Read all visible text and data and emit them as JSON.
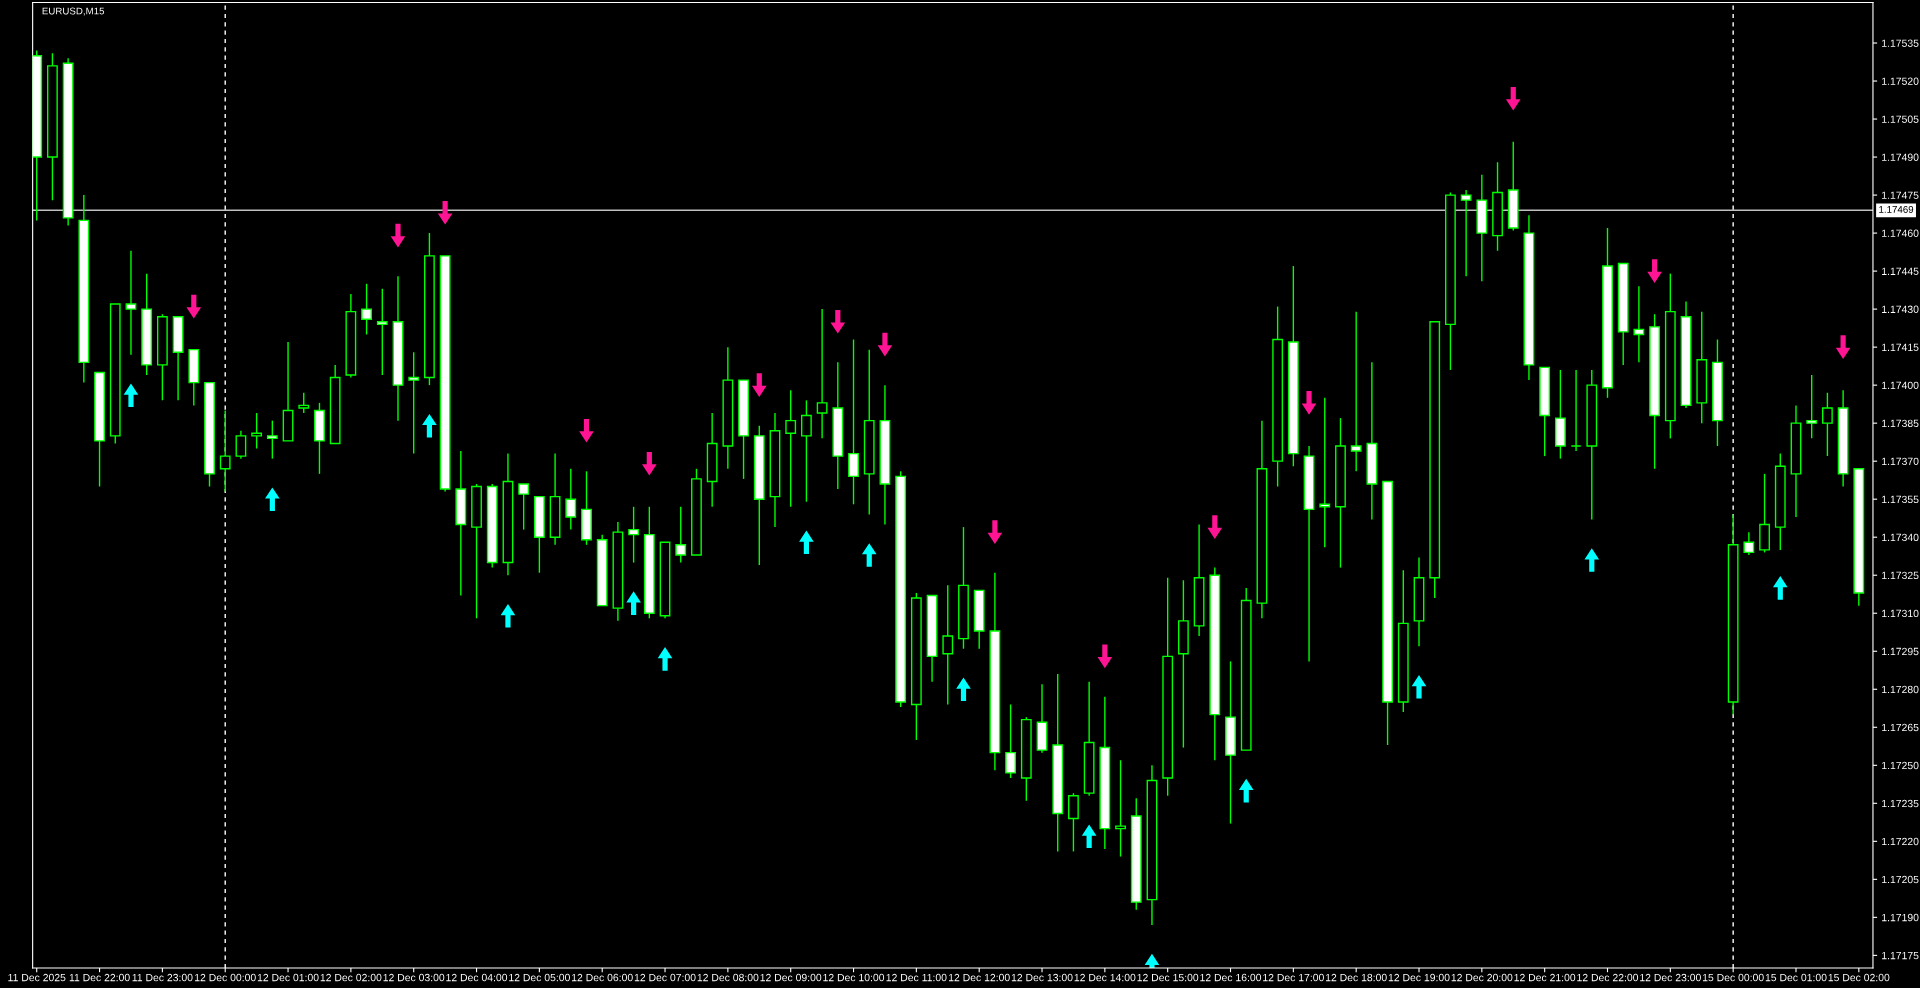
{
  "chart_data": {
    "type": "candlestick",
    "title": "EURUSD,M15",
    "categories": [
      "11 Dec 2025",
      null,
      null,
      null,
      "11 Dec 22:00",
      null,
      null,
      null,
      "11 Dec 23:00",
      null,
      null,
      null,
      "12 Dec 00:00",
      null,
      null,
      null,
      "12 Dec 01:00",
      null,
      null,
      null,
      "12 Dec 02:00",
      null,
      null,
      null,
      "12 Dec 03:00",
      null,
      null,
      null,
      "12 Dec 04:00",
      null,
      null,
      null,
      "12 Dec 05:00",
      null,
      null,
      null,
      "12 Dec 06:00",
      null,
      null,
      null,
      "12 Dec 07:00",
      null,
      null,
      null,
      "12 Dec 08:00",
      null,
      null,
      null,
      "12 Dec 09:00",
      null,
      null,
      null,
      "12 Dec 10:00",
      null,
      null,
      null,
      "12 Dec 11:00",
      null,
      null,
      null,
      "12 Dec 12:00",
      null,
      null,
      null,
      "12 Dec 13:00",
      null,
      null,
      null,
      "12 Dec 14:00",
      null,
      null,
      null,
      "12 Dec 15:00",
      null,
      null,
      null,
      "12 Dec 16:00",
      null,
      null,
      null,
      "12 Dec 17:00",
      null,
      null,
      null,
      "12 Dec 18:00",
      null,
      null,
      null,
      "12 Dec 19:00",
      null,
      null,
      null,
      "12 Dec 20:00",
      null,
      null,
      null,
      "12 Dec 21:00",
      null,
      null,
      null,
      "12 Dec 22:00",
      null,
      null,
      null,
      "12 Dec 23:00",
      null,
      null,
      null,
      "15 Dec 00:00",
      null,
      null,
      null,
      "15 Dec 01:00",
      null,
      null,
      null,
      "15 Dec 02:00"
    ],
    "ohlc": [
      [
        1.1753,
        1.17532,
        1.17465,
        1.1749
      ],
      [
        1.1749,
        1.17531,
        1.17473,
        1.17526
      ],
      [
        1.17527,
        1.17529,
        1.17463,
        1.17466
      ],
      [
        1.17465,
        1.17475,
        1.17401,
        1.17409
      ],
      [
        1.17405,
        1.17405,
        1.1736,
        1.17378
      ],
      [
        1.1738,
        1.17432,
        1.17377,
        1.17432
      ],
      [
        1.17432,
        1.17453,
        1.17412,
        1.1743
      ],
      [
        1.1743,
        1.17444,
        1.17404,
        1.17408
      ],
      [
        1.17408,
        1.17428,
        1.17394,
        1.17427
      ],
      [
        1.17427,
        1.17427,
        1.17394,
        1.17413
      ],
      [
        1.17414,
        1.17414,
        1.17392,
        1.17401
      ],
      [
        1.17401,
        1.17401,
        1.1736,
        1.17365
      ],
      [
        1.17367,
        1.1739,
        1.17358,
        1.17372
      ],
      [
        1.17372,
        1.17382,
        1.17371,
        1.1738
      ],
      [
        1.1738,
        1.17389,
        1.17375,
        1.17381
      ],
      [
        1.1738,
        1.17386,
        1.17371,
        1.17379
      ],
      [
        1.17378,
        1.17417,
        1.17378,
        1.1739
      ],
      [
        1.17391,
        1.17397,
        1.17389,
        1.17392
      ],
      [
        1.1739,
        1.17393,
        1.17365,
        1.17378
      ],
      [
        1.17377,
        1.17408,
        1.17377,
        1.17403
      ],
      [
        1.17404,
        1.17436,
        1.17403,
        1.17429
      ],
      [
        1.1743,
        1.1744,
        1.1742,
        1.17426
      ],
      [
        1.17425,
        1.17438,
        1.17404,
        1.17424
      ],
      [
        1.17425,
        1.17443,
        1.17386,
        1.174
      ],
      [
        1.17403,
        1.17413,
        1.17373,
        1.17402
      ],
      [
        1.17403,
        1.1746,
        1.174,
        1.17451
      ],
      [
        1.17451,
        1.17451,
        1.17358,
        1.17359
      ],
      [
        1.17359,
        1.17374,
        1.17317,
        1.17345
      ],
      [
        1.17344,
        1.17361,
        1.17308,
        1.1736
      ],
      [
        1.1736,
        1.17361,
        1.17328,
        1.1733
      ],
      [
        1.1733,
        1.17373,
        1.17325,
        1.17362
      ],
      [
        1.17361,
        1.17361,
        1.17343,
        1.17357
      ],
      [
        1.17356,
        1.17356,
        1.17326,
        1.1734
      ],
      [
        1.1734,
        1.17373,
        1.17337,
        1.17356
      ],
      [
        1.17355,
        1.17367,
        1.17343,
        1.17348
      ],
      [
        1.17351,
        1.17366,
        1.17337,
        1.17339
      ],
      [
        1.17339,
        1.17341,
        1.17313,
        1.17313
      ],
      [
        1.17312,
        1.17346,
        1.17307,
        1.17342
      ],
      [
        1.17343,
        1.17352,
        1.1733,
        1.17341
      ],
      [
        1.17341,
        1.17352,
        1.17308,
        1.1731
      ],
      [
        1.17309,
        1.17338,
        1.17308,
        1.17338
      ],
      [
        1.17337,
        1.17352,
        1.1733,
        1.17333
      ],
      [
        1.17333,
        1.17367,
        1.17333,
        1.17363
      ],
      [
        1.17362,
        1.17389,
        1.17352,
        1.17377
      ],
      [
        1.17376,
        1.17415,
        1.17367,
        1.17402
      ],
      [
        1.17402,
        1.17402,
        1.17363,
        1.1738
      ],
      [
        1.1738,
        1.17384,
        1.17329,
        1.17355
      ],
      [
        1.17356,
        1.17389,
        1.17344,
        1.17382
      ],
      [
        1.17381,
        1.17398,
        1.17352,
        1.17386
      ],
      [
        1.1738,
        1.17394,
        1.17354,
        1.17388
      ],
      [
        1.17389,
        1.1743,
        1.17379,
        1.17393
      ],
      [
        1.17391,
        1.17409,
        1.17359,
        1.17372
      ],
      [
        1.17373,
        1.17418,
        1.17353,
        1.17364
      ],
      [
        1.17365,
        1.17414,
        1.17349,
        1.17386
      ],
      [
        1.17386,
        1.174,
        1.17345,
        1.17361
      ],
      [
        1.17364,
        1.17366,
        1.17273,
        1.17275
      ],
      [
        1.17274,
        1.17318,
        1.1726,
        1.17316
      ],
      [
        1.17317,
        1.17317,
        1.17283,
        1.17293
      ],
      [
        1.17294,
        1.17321,
        1.17274,
        1.17301
      ],
      [
        1.173,
        1.17344,
        1.17296,
        1.17321
      ],
      [
        1.17319,
        1.17319,
        1.17296,
        1.17303
      ],
      [
        1.17303,
        1.17326,
        1.17248,
        1.17255
      ],
      [
        1.17255,
        1.17274,
        1.17245,
        1.17247
      ],
      [
        1.17245,
        1.17269,
        1.17236,
        1.17268
      ],
      [
        1.17267,
        1.17282,
        1.17255,
        1.17256
      ],
      [
        1.17258,
        1.17286,
        1.17216,
        1.17231
      ],
      [
        1.17229,
        1.17239,
        1.17216,
        1.17238
      ],
      [
        1.17239,
        1.17283,
        1.17238,
        1.17259
      ],
      [
        1.17257,
        1.17277,
        1.17217,
        1.17225
      ],
      [
        1.17225,
        1.17252,
        1.17214,
        1.17226
      ],
      [
        1.1723,
        1.17237,
        1.17193,
        1.17196
      ],
      [
        1.17197,
        1.1725,
        1.17187,
        1.17244
      ],
      [
        1.17245,
        1.17324,
        1.17238,
        1.17293
      ],
      [
        1.17294,
        1.17323,
        1.17257,
        1.17307
      ],
      [
        1.17305,
        1.17345,
        1.17301,
        1.17324
      ],
      [
        1.17325,
        1.17328,
        1.17252,
        1.1727
      ],
      [
        1.17269,
        1.17291,
        1.17227,
        1.17254
      ],
      [
        1.17256,
        1.1732,
        1.17256,
        1.17315
      ],
      [
        1.17314,
        1.17386,
        1.17308,
        1.17367
      ],
      [
        1.1737,
        1.17431,
        1.1736,
        1.17418
      ],
      [
        1.17417,
        1.17447,
        1.17368,
        1.17373
      ],
      [
        1.17372,
        1.17376,
        1.17291,
        1.17351
      ],
      [
        1.17353,
        1.17395,
        1.17336,
        1.17352
      ],
      [
        1.17352,
        1.17387,
        1.17328,
        1.17376
      ],
      [
        1.17376,
        1.17429,
        1.17366,
        1.17374
      ],
      [
        1.17377,
        1.17409,
        1.17347,
        1.17361
      ],
      [
        1.17362,
        1.17362,
        1.17258,
        1.17275
      ],
      [
        1.17275,
        1.17327,
        1.17271,
        1.17306
      ],
      [
        1.17307,
        1.17332,
        1.17297,
        1.17324
      ],
      [
        1.17324,
        1.17425,
        1.17316,
        1.17425
      ],
      [
        1.17424,
        1.17476,
        1.17406,
        1.17475
      ],
      [
        1.17475,
        1.17477,
        1.17443,
        1.17473
      ],
      [
        1.17473,
        1.17483,
        1.17441,
        1.1746
      ],
      [
        1.17459,
        1.17488,
        1.17453,
        1.17476
      ],
      [
        1.17477,
        1.17496,
        1.17461,
        1.17462
      ],
      [
        1.1746,
        1.17467,
        1.17402,
        1.17408
      ],
      [
        1.17407,
        1.17407,
        1.17372,
        1.17388
      ],
      [
        1.17387,
        1.17406,
        1.17371,
        1.17376
      ],
      [
        1.17376,
        1.17406,
        1.17374,
        1.17376
      ],
      [
        1.17376,
        1.17406,
        1.17347,
        1.174
      ],
      [
        1.17447,
        1.17462,
        1.17395,
        1.17399
      ],
      [
        1.17448,
        1.17448,
        1.17408,
        1.17421
      ],
      [
        1.17422,
        1.17439,
        1.17409,
        1.1742
      ],
      [
        1.17423,
        1.17428,
        1.17367,
        1.17388
      ],
      [
        1.17386,
        1.17444,
        1.17379,
        1.17429
      ],
      [
        1.17427,
        1.17433,
        1.17391,
        1.17392
      ],
      [
        1.17393,
        1.17429,
        1.17385,
        1.1741
      ],
      [
        1.17409,
        1.17418,
        1.17376,
        1.17386
      ],
      [
        1.17275,
        1.17349,
        1.1727,
        1.17337
      ],
      [
        1.17338,
        1.17342,
        1.17333,
        1.17334
      ],
      [
        1.17335,
        1.17365,
        1.17334,
        1.17345
      ],
      [
        1.17344,
        1.17373,
        1.17335,
        1.17368
      ],
      [
        1.17365,
        1.17392,
        1.17348,
        1.17385
      ],
      [
        1.17386,
        1.17404,
        1.17379,
        1.17385
      ],
      [
        1.17385,
        1.17397,
        1.17372,
        1.17391
      ],
      [
        1.17391,
        1.17398,
        1.1736,
        1.17365
      ],
      [
        1.17367,
        1.17367,
        1.17313,
        1.17318
      ]
    ],
    "series": [
      {
        "type": "scatter",
        "color": "#00ffff",
        "values": [
          null,
          null,
          null,
          null,
          null,
          null,
          1.17396,
          null,
          null,
          null,
          null,
          null,
          null,
          null,
          null,
          1.17355,
          null,
          null,
          null,
          null,
          null,
          null,
          null,
          null,
          null,
          1.17384,
          null,
          null,
          null,
          null,
          1.17309,
          null,
          null,
          null,
          null,
          null,
          null,
          null,
          1.17314,
          null,
          1.17292,
          null,
          null,
          null,
          null,
          null,
          null,
          null,
          null,
          1.17338,
          null,
          null,
          null,
          1.17333,
          null,
          null,
          null,
          null,
          null,
          1.1728,
          null,
          null,
          null,
          null,
          null,
          null,
          null,
          1.17222,
          null,
          null,
          null,
          1.17171,
          null,
          null,
          null,
          null,
          null,
          1.1724,
          null,
          null,
          null,
          null,
          null,
          null,
          null,
          null,
          null,
          null,
          1.17281,
          null,
          null,
          null,
          null,
          null,
          null,
          null,
          null,
          null,
          null,
          1.17331,
          null,
          null,
          null,
          null,
          null,
          null,
          null,
          null,
          null,
          null,
          null,
          1.1732,
          null,
          null,
          null,
          null,
          null
        ]
      },
      {
        "type": "scatter",
        "color": "#ff1493",
        "values": [
          null,
          null,
          null,
          null,
          null,
          null,
          null,
          null,
          null,
          null,
          1.17431,
          null,
          null,
          null,
          null,
          null,
          null,
          null,
          null,
          null,
          null,
          null,
          null,
          1.17459,
          null,
          null,
          1.17468,
          null,
          null,
          null,
          null,
          null,
          null,
          null,
          null,
          1.17382,
          null,
          null,
          null,
          1.17369,
          null,
          null,
          null,
          null,
          null,
          null,
          1.174,
          null,
          null,
          null,
          null,
          1.17425,
          null,
          null,
          1.17416,
          null,
          null,
          null,
          null,
          null,
          null,
          1.17342,
          null,
          null,
          null,
          null,
          null,
          null,
          1.17293,
          null,
          null,
          null,
          null,
          null,
          null,
          1.17344,
          null,
          null,
          null,
          null,
          null,
          1.17393,
          null,
          null,
          null,
          null,
          null,
          null,
          null,
          null,
          null,
          null,
          null,
          null,
          1.17513,
          null,
          null,
          null,
          null,
          null,
          null,
          null,
          null,
          1.17445,
          null,
          null,
          null,
          null,
          null,
          null,
          null,
          null,
          null,
          null,
          null,
          1.17415,
          null
        ]
      }
    ],
    "ylim": [
      1.1717,
      1.17551
    ],
    "yticks": [
      1.17175,
      {
        "value": 1.1719,
        "label": "1.17190"
      },
      1.17205,
      {
        "value": 1.1722,
        "label": "1.17220"
      },
      1.17235,
      {
        "value": 1.1725,
        "label": "1.17250"
      },
      1.17265,
      {
        "value": 1.1728,
        "label": "1.17280"
      },
      1.17295,
      {
        "value": 1.1731,
        "label": "1.17310"
      },
      1.17325,
      {
        "value": 1.1734,
        "label": "1.17340"
      },
      1.17355,
      {
        "value": 1.1737,
        "label": "1.17370"
      },
      1.17385,
      {
        "value": 1.174,
        "label": "1.17400"
      },
      1.17415,
      {
        "value": 1.1743,
        "label": "1.17430"
      },
      1.17445,
      {
        "value": 1.1746,
        "label": "1.17460"
      },
      1.17475,
      {
        "value": 1.1749,
        "label": "1.17490"
      },
      1.17505,
      {
        "value": 1.1752,
        "label": "1.17520"
      },
      1.17535
    ],
    "ref_lines": [
      {
        "axis": "y",
        "value": 1.17469,
        "label": "1.17469",
        "color": "#c0c0c0",
        "line_style": "solid"
      },
      {
        "axis": "x",
        "value": "12 Dec 00:00",
        "color": "#ffffff",
        "line_style": "dashed"
      },
      {
        "axis": "x",
        "value": "15 Dec 00:00",
        "color": "#ffffff",
        "line_style": "dashed"
      }
    ],
    "grid": false,
    "legend": false
  }
}
